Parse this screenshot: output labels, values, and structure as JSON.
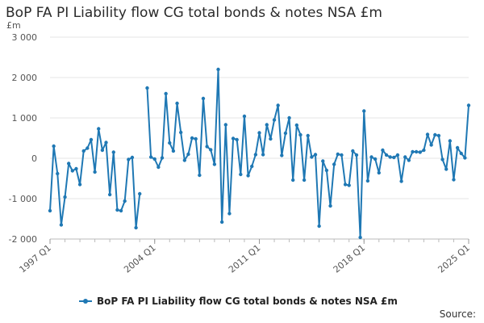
{
  "header": {
    "title": "BoP FA PI Liability flow CG total bonds & notes NSA £m"
  },
  "footer": {
    "source": "Source:"
  },
  "colors": {
    "series": "#1f78b4",
    "grid": "#e6e6e6",
    "axis": "#bbbbbb"
  },
  "chart_data": {
    "type": "line",
    "unit_label": "£m",
    "xlabel": "",
    "ylabel": "",
    "ylim": [
      -2000,
      3000
    ],
    "yticks": [
      -2000,
      -1000,
      0,
      1000,
      2000,
      3000
    ],
    "ytick_labels": [
      "-2 000",
      "-1 000",
      "0",
      "1 000",
      "2 000",
      "3 000"
    ],
    "x_start": "1997 Q1",
    "x_end": "2025 Q1",
    "xtick_labels": [
      "1997 Q1",
      "2004 Q1",
      "2011 Q1",
      "2018 Q1",
      "2025 Q1"
    ],
    "grid": true,
    "legend_position": "bottom",
    "series": [
      {
        "name": "BoP FA PI Liability flow CG total bonds & notes NSA £m",
        "values": [
          -1300,
          300,
          -380,
          -1650,
          -960,
          -130,
          -310,
          -260,
          -650,
          180,
          250,
          460,
          -340,
          730,
          200,
          390,
          -900,
          150,
          -1280,
          -1300,
          -1060,
          -30,
          20,
          -1720,
          -880,
          null,
          1740,
          30,
          -20,
          -220,
          10,
          1600,
          380,
          180,
          1360,
          640,
          -50,
          100,
          500,
          480,
          -420,
          1480,
          290,
          210,
          -150,
          2200,
          -1580,
          830,
          -1370,
          490,
          460,
          -400,
          1040,
          -430,
          -200,
          90,
          630,
          90,
          830,
          480,
          950,
          1310,
          70,
          620,
          1000,
          -540,
          820,
          580,
          -540,
          560,
          30,
          90,
          -1680,
          -70,
          -300,
          -1180,
          -150,
          100,
          80,
          -650,
          -670,
          180,
          80,
          -1960,
          1170,
          -560,
          30,
          -20,
          -360,
          200,
          80,
          30,
          20,
          80,
          -570,
          30,
          -50,
          160,
          160,
          150,
          200,
          590,
          330,
          580,
          560,
          -30,
          -270,
          430,
          -530,
          260,
          120,
          10,
          1310
        ]
      }
    ]
  }
}
